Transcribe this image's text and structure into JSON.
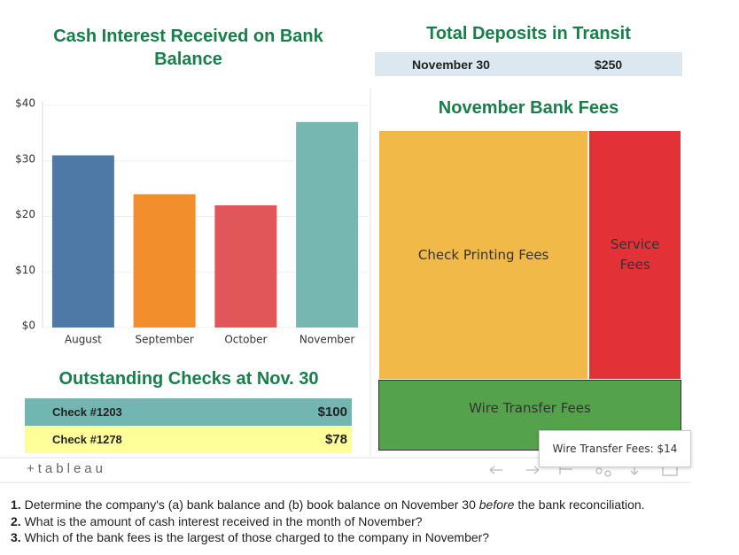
{
  "chart_data": [
    {
      "type": "bar",
      "title": "Cash Interest Received on Bank Balance",
      "categories": [
        "August",
        "September",
        "October",
        "November"
      ],
      "values": [
        31,
        24,
        22,
        37
      ],
      "colors": [
        "#4e79a7",
        "#f28e2b",
        "#e15759",
        "#76b7b2"
      ],
      "ylim": [
        0,
        40
      ],
      "yticks": [
        {
          "value": 0,
          "label": "$0"
        },
        {
          "value": 10,
          "label": "$10"
        },
        {
          "value": 20,
          "label": "$20"
        },
        {
          "value": 30,
          "label": "$30"
        },
        {
          "value": 40,
          "label": "$40"
        }
      ],
      "grid": true
    },
    {
      "type": "treemap",
      "title": "November Bank Fees",
      "categories": [
        "Check Printing Fees",
        "Service Fees",
        "Wire Transfer Fees"
      ],
      "values": [
        34,
        15,
        14
      ],
      "colors": [
        "#f1b948",
        "#e23237",
        "#55a24c"
      ],
      "tooltip": "Wire Transfer Fees: $14"
    }
  ],
  "deposits": {
    "title": "Total Deposits in Transit",
    "rows": [
      [
        "November 30",
        "$250"
      ]
    ]
  },
  "checks": {
    "title": "Outstanding Checks at Nov. 30",
    "rows": [
      [
        "Check #1203",
        "$100"
      ],
      [
        "Check #1278",
        "$78"
      ]
    ],
    "colors": [
      "#72b6b1",
      "#ffff99"
    ]
  },
  "footer": {
    "brand": "+tableau"
  },
  "questions": [
    {
      "number": "1.",
      "parts": [
        "Determine the company's (a) bank balance and (b) book balance on November 30 ",
        "before",
        " the bank reconciliation."
      ]
    },
    {
      "number": "2.",
      "parts": [
        "What is the amount of cash interest received in the month of November?"
      ]
    },
    {
      "number": "3.",
      "parts": [
        "Which of the bank fees is the largest of those charged to the company in November?"
      ]
    }
  ]
}
